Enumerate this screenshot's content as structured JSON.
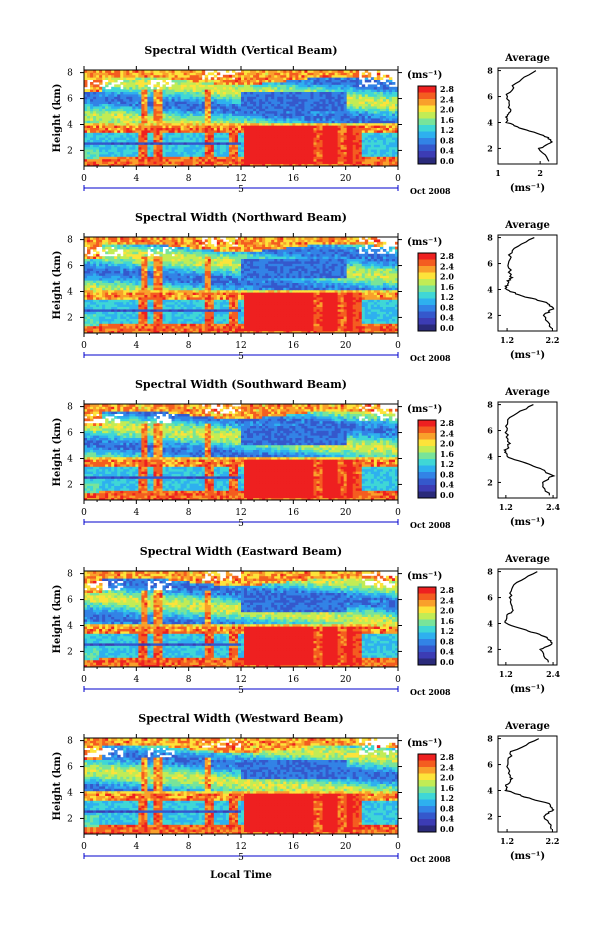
{
  "colorbar": {
    "unit": "(ms⁻¹)",
    "ticks": [
      "2.8",
      "2.4",
      "2.0",
      "1.6",
      "1.2",
      "0.8",
      "0.4",
      "0.0"
    ],
    "colors": [
      "#ee2020",
      "#f45d20",
      "#f9a02b",
      "#fde33a",
      "#c2ec55",
      "#78e49a",
      "#3fd7d6",
      "#2eb0ef",
      "#3283e6",
      "#3558cc",
      "#3c3cb4",
      "#2a2a7a"
    ]
  },
  "common": {
    "ylabel": "Height (km)",
    "date_label": "Oct 2008",
    "day_label": "5",
    "xlabel": "Local Time",
    "avg_title": "Average",
    "avg_xlabel": "(ms⁻¹)",
    "time_ticks": [
      "0",
      "4",
      "8",
      "12",
      "16",
      "20",
      "0"
    ],
    "height_ticks": [
      "8",
      "6",
      "4",
      "2"
    ]
  },
  "panels": [
    {
      "title": "Spectral Width (Vertical Beam)",
      "avg_ticks": [
        "1",
        "2"
      ],
      "avg_range": [
        1.0,
        2.4
      ]
    },
    {
      "title": "Spectral Width (Northward Beam)",
      "avg_ticks": [
        "1.2",
        "2.2"
      ],
      "avg_range": [
        1.0,
        2.3
      ]
    },
    {
      "title": "Spectral Width (Southward Beam)",
      "avg_ticks": [
        "1.2",
        "2.4"
      ],
      "avg_range": [
        1.0,
        2.5
      ]
    },
    {
      "title": "Spectral Width (Eastward Beam)",
      "avg_ticks": [
        "1.2",
        "2.4"
      ],
      "avg_range": [
        1.0,
        2.5
      ]
    },
    {
      "title": "Spectral Width (Westward Beam)",
      "avg_ticks": [
        "1.2",
        "2.2"
      ],
      "avg_range": [
        1.0,
        2.3
      ]
    }
  ],
  "chart_data": {
    "type": "heatmap",
    "x": {
      "label": "Local Time",
      "ticks": [
        "0",
        "4",
        "8",
        "12",
        "16",
        "20",
        "0"
      ],
      "range_hours": [
        0,
        24
      ]
    },
    "y": {
      "label": "Height (km)",
      "ticks": [
        "2",
        "4",
        "6",
        "8"
      ],
      "range_km": [
        0.8,
        8.2
      ]
    },
    "z": {
      "label": "Spectral width (ms⁻¹)",
      "range": [
        0.0,
        2.8
      ]
    },
    "average_profiles": {
      "heights_km": [
        1.0,
        2.0,
        2.5,
        3.0,
        3.5,
        4.0,
        4.5,
        5.0,
        6.0,
        7.0,
        8.0
      ],
      "series": [
        {
          "name": "Vertical Beam",
          "values": [
            2.2,
            2.0,
            2.3,
            2.1,
            1.6,
            1.2,
            1.2,
            1.3,
            1.2,
            1.4,
            1.9
          ]
        },
        {
          "name": "Northward Beam",
          "values": [
            2.2,
            2.0,
            2.2,
            2.1,
            1.5,
            1.2,
            1.2,
            1.3,
            1.2,
            1.3,
            1.8
          ]
        },
        {
          "name": "Southward Beam",
          "values": [
            2.3,
            2.1,
            2.4,
            2.1,
            1.7,
            1.2,
            1.2,
            1.3,
            1.2,
            1.3,
            1.9
          ]
        },
        {
          "name": "Eastward Beam",
          "values": [
            2.3,
            2.1,
            2.4,
            2.2,
            1.7,
            1.2,
            1.2,
            1.4,
            1.3,
            1.4,
            2.0
          ]
        },
        {
          "name": "Westward Beam",
          "values": [
            2.2,
            2.0,
            2.2,
            2.1,
            1.6,
            1.2,
            1.2,
            1.3,
            1.2,
            1.3,
            1.9
          ]
        }
      ]
    }
  }
}
